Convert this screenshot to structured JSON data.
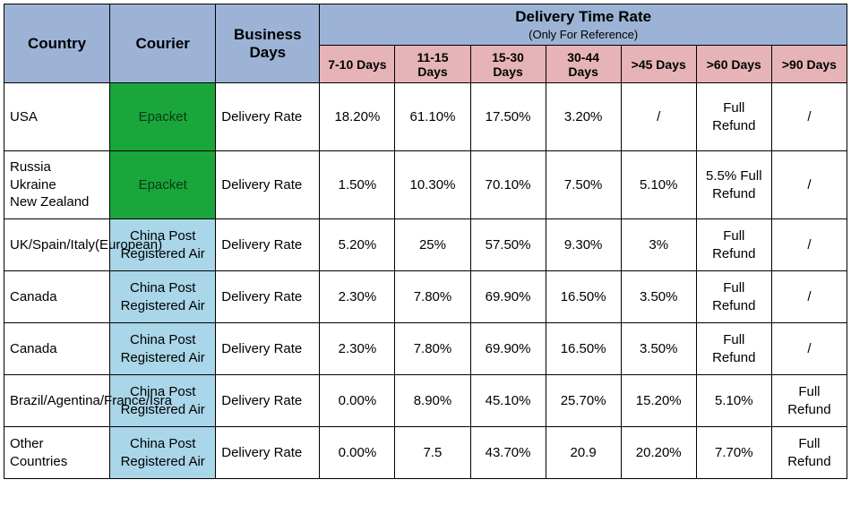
{
  "colors": {
    "header_main_bg": "#9cb3d6",
    "header_days_bg": "#e6b4b8",
    "courier_green_bg": "#1aa63a",
    "courier_blue_bg": "#a9d6e8",
    "border": "#000000",
    "text": "#000000",
    "background": "#ffffff"
  },
  "font_sizes": {
    "header_main": 17,
    "header_sub": 13,
    "header_days": 14,
    "cell": 15
  },
  "header": {
    "country": "Country",
    "courier": "Courier",
    "business_days": "Business Days",
    "delivery_title": "Delivery Time Rate",
    "delivery_sub": "(Only For Reference)",
    "days": [
      "7-10 Days",
      "11-15 Days",
      "15-30 Days",
      "30-44 Days",
      ">45 Days",
      ">60 Days",
      ">90 Days"
    ]
  },
  "rows": [
    {
      "country": "USA",
      "courier": "Epacket",
      "courier_style": "green",
      "biz": "Delivery Rate",
      "vals": [
        "18.20%",
        "61.10%",
        "17.50%",
        "3.20%",
        "/",
        "Full Refund",
        "/"
      ],
      "height": "tall"
    },
    {
      "country": "Russia\nUkraine\nNew Zealand",
      "courier": "Epacket",
      "courier_style": "green",
      "biz": "Delivery Rate",
      "vals": [
        "1.50%",
        "10.30%",
        "70.10%",
        "7.50%",
        "5.10%",
        "5.5% Full Refund",
        "/"
      ],
      "height": "tall"
    },
    {
      "country": "UK/Spain/Italy(European)",
      "courier": "China Post Registered Air",
      "courier_style": "blue",
      "biz": "Delivery Rate",
      "vals": [
        "5.20%",
        "25%",
        "57.50%",
        "9.30%",
        "3%",
        "Full Refund",
        "/"
      ],
      "height": "med"
    },
    {
      "country": "Canada",
      "courier": "China Post Registered Air",
      "courier_style": "blue",
      "biz": "Delivery Rate",
      "vals": [
        "2.30%",
        "7.80%",
        "69.90%",
        "16.50%",
        "3.50%",
        "Full Refund",
        "/"
      ],
      "height": "med"
    },
    {
      "country": "Canada",
      "courier": "China Post Registered Air",
      "courier_style": "blue",
      "biz": "Delivery Rate",
      "vals": [
        "2.30%",
        "7.80%",
        "69.90%",
        "16.50%",
        "3.50%",
        "Full Refund",
        "/"
      ],
      "height": "med"
    },
    {
      "country": "Brazil/Agentina/France/Isra",
      "courier": "China Post Registered Air",
      "courier_style": "blue",
      "biz": "Delivery Rate",
      "vals": [
        "0.00%",
        "8.90%",
        "45.10%",
        "25.70%",
        "15.20%",
        "5.10%",
        "Full Refund"
      ],
      "height": "med"
    },
    {
      "country": "Other Countries",
      "courier": "China Post Registered Air",
      "courier_style": "blue",
      "biz": "Delivery Rate",
      "vals": [
        "0.00%",
        "7.5",
        "43.70%",
        "20.9",
        "20.20%",
        "7.70%",
        "Full Refund"
      ],
      "height": "med"
    }
  ]
}
